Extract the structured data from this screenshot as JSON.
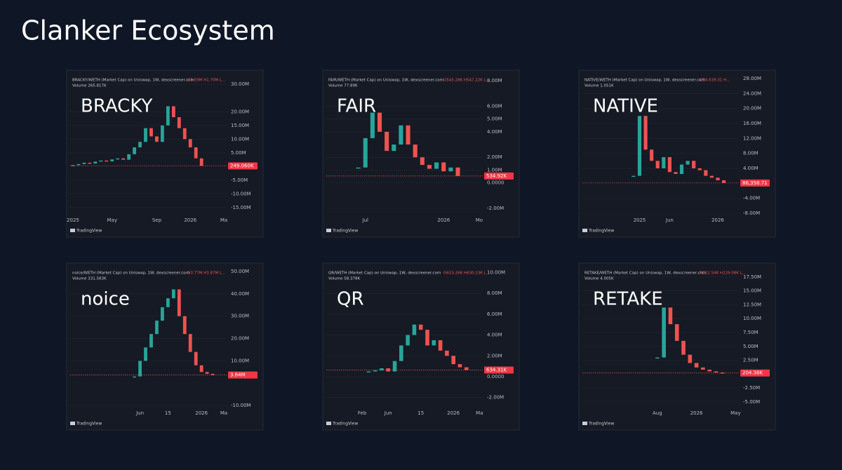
{
  "title": "Clanker Ecosystem",
  "chart_data": [
    {
      "type": "candlestick",
      "title": "BRACKY",
      "legend": "BRACKY/WETH (Market Cap) on Uniswap, 1W, dexscreener.com",
      "ohlc": "O1.59M H1.70M L...",
      "volume_text": "Volume 265.817K",
      "footer": "TradingView",
      "categories": [
        "2025",
        null,
        null,
        null,
        null,
        null,
        null,
        "May",
        null,
        null,
        null,
        null,
        null,
        null,
        null,
        "Sep",
        null,
        null,
        null,
        null,
        null,
        "2026",
        null,
        null,
        null,
        null,
        null,
        "Ma"
      ],
      "values": [
        0.5,
        0.9,
        1.4,
        1.1,
        1.8,
        2.2,
        1.9,
        2.6,
        3.0,
        2.5,
        4.5,
        7,
        9,
        14,
        11,
        9,
        15,
        22,
        18,
        14,
        10,
        7,
        3,
        0.24906,
        null,
        null,
        null,
        null
      ],
      "ylim": [
        -17.3,
        32.1
      ],
      "yticks": [
        {
          "value": 30,
          "label": "30.00M"
        },
        {
          "value": 20,
          "label": "20.00M"
        },
        {
          "value": 15,
          "label": "15.00M"
        },
        {
          "value": 10,
          "label": "10.00M"
        },
        {
          "value": 5,
          "label": "5.00M"
        },
        {
          "value": -5,
          "label": "-5.00M"
        },
        {
          "value": -10,
          "label": "-10.00M"
        },
        {
          "value": -15,
          "label": "-15.00M"
        }
      ],
      "price_label": {
        "value": 0.24906,
        "label": "249.060K"
      },
      "up_color": "#26a69a",
      "down_color": "#ef5350"
    },
    {
      "type": "candlestick",
      "title": "FAIR",
      "legend": "FAIR/WETH (Market Cap) on Uniswap, 1W, dexscreener.com",
      "ohlc": "O545.28K H547.22K L...",
      "volume_text": "Volume 77.89K",
      "footer": "TradingView",
      "categories": [
        null,
        null,
        null,
        null,
        null,
        "Jul",
        null,
        null,
        null,
        null,
        null,
        null,
        null,
        null,
        null,
        null,
        "2026",
        null,
        null,
        null,
        null,
        "Mo"
      ],
      "values": [
        null,
        null,
        null,
        null,
        1.2,
        3.5,
        5.5,
        4,
        2.5,
        3,
        4.5,
        3,
        2,
        1.4,
        1.1,
        1.6,
        0.9,
        1.2,
        0.53492,
        null,
        null,
        null
      ],
      "ylim": [
        -2.44,
        8.17
      ],
      "yticks": [
        {
          "value": 8,
          "label": "8.00M"
        },
        {
          "value": 6,
          "label": "6.00M"
        },
        {
          "value": 5,
          "label": "5.00M"
        },
        {
          "value": 4,
          "label": "4.00M"
        },
        {
          "value": 2,
          "label": "2.00M"
        },
        {
          "value": 1,
          "label": "1.00M"
        },
        {
          "value": 0,
          "label": "0.0000"
        },
        {
          "value": -2,
          "label": "-2.00M"
        }
      ],
      "price_label": {
        "value": 0.53492,
        "label": "534.92K"
      },
      "up_color": "#26a69a",
      "down_color": "#ef5350"
    },
    {
      "type": "candlestick",
      "title": "NATIVE",
      "legend": "NATIVE/WETH (Market Cap) on Uniswap, 1W, dexscreener.com",
      "ohlc": "O84,639.31 H...",
      "volume_text": "Volume 1.051K",
      "footer": "TradingView",
      "categories": [
        null,
        null,
        null,
        null,
        null,
        null,
        null,
        null,
        null,
        "2025",
        null,
        null,
        null,
        null,
        "Jun",
        null,
        null,
        null,
        null,
        null,
        null,
        null,
        "2026",
        null,
        null,
        null
      ],
      "values": [
        null,
        null,
        null,
        null,
        null,
        null,
        null,
        null,
        2,
        18,
        9,
        6,
        4,
        7,
        3,
        2.5,
        5,
        6,
        4,
        3.5,
        2,
        1.5,
        0.8,
        0.08635871,
        null,
        null
      ],
      "ylim": [
        -8.2,
        28
      ],
      "yticks": [
        {
          "value": 28,
          "label": "28.00M"
        },
        {
          "value": 24,
          "label": "24.00M"
        },
        {
          "value": 20,
          "label": "20.00M"
        },
        {
          "value": 16,
          "label": "16.00M"
        },
        {
          "value": 12,
          "label": "12.00M"
        },
        {
          "value": 8,
          "label": "8.00M"
        },
        {
          "value": 4,
          "label": "4.00M"
        },
        {
          "value": -4,
          "label": "-4.00M"
        },
        {
          "value": -8,
          "label": "-8.00M"
        }
      ],
      "price_label": {
        "value": 0.08635871,
        "label": "86,358.71"
      },
      "up_color": "#26a69a",
      "down_color": "#ef5350"
    },
    {
      "type": "candlestick",
      "title": "noice",
      "legend": "noice/WETH (Market Cap) on Uniswap, 1W, dexscreener.com",
      "ohlc": "O3.77M H3.87M L...",
      "volume_text": "Volume 331.583K",
      "footer": "TradingView",
      "categories": [
        null,
        null,
        null,
        null,
        null,
        null,
        null,
        null,
        null,
        null,
        null,
        null,
        "Jun",
        null,
        null,
        null,
        null,
        "15",
        null,
        null,
        null,
        null,
        null,
        "2026",
        null,
        null,
        null,
        "Ma"
      ],
      "values": [
        null,
        null,
        null,
        null,
        null,
        null,
        null,
        null,
        null,
        null,
        null,
        3,
        10,
        16,
        22,
        28,
        34,
        38,
        42,
        30,
        22,
        14,
        8,
        5,
        4.2,
        3.64,
        null,
        null
      ],
      "ylim": [
        -10.6,
        50
      ],
      "yticks": [
        {
          "value": 50,
          "label": "50.00M"
        },
        {
          "value": 40,
          "label": "40.00M"
        },
        {
          "value": 30,
          "label": "30.00M"
        },
        {
          "value": 20,
          "label": "20.00M"
        },
        {
          "value": 10,
          "label": "10.00M"
        },
        {
          "value": -10,
          "label": "-10.00M"
        }
      ],
      "price_label": {
        "value": 3.64,
        "label": "3.64M"
      },
      "up_color": "#26a69a",
      "down_color": "#ef5350"
    },
    {
      "type": "candlestick",
      "title": "QR",
      "legend": "QR/WETH (Market Cap) on Uniswap, 1W, dexscreener.com",
      "ohlc": "O623.26K H630.23K L...",
      "volume_text": "Volume 58.378K",
      "footer": "TradingView",
      "categories": [
        null,
        null,
        null,
        null,
        null,
        "Feb",
        null,
        null,
        null,
        "Jun",
        null,
        null,
        null,
        null,
        "15",
        null,
        null,
        null,
        null,
        "2026",
        null,
        null,
        null,
        "Ma"
      ],
      "values": [
        null,
        null,
        null,
        null,
        null,
        null,
        0.5,
        0.6,
        0.8,
        0.5,
        1.5,
        3,
        4,
        5,
        4.5,
        3,
        3.5,
        2.5,
        2,
        1.2,
        0.9,
        0.63431,
        null,
        null
      ],
      "ylim": [
        -2.9,
        10.1
      ],
      "yticks": [
        {
          "value": 10,
          "label": "10.00M"
        },
        {
          "value": 8,
          "label": "8.00M"
        },
        {
          "value": 6,
          "label": "6.00M"
        },
        {
          "value": 4,
          "label": "4.00M"
        },
        {
          "value": 2,
          "label": "2.00M"
        },
        {
          "value": 0,
          "label": "0.0000"
        },
        {
          "value": -2,
          "label": "-2.00M"
        }
      ],
      "price_label": {
        "value": 0.63431,
        "label": "634.31K"
      },
      "up_color": "#26a69a",
      "down_color": "#ef5350"
    },
    {
      "type": "candlestick",
      "title": "RETAKE",
      "legend": "RETAKE/WETH (Market Cap) on Uniswap, 1W, dexscreener.com",
      "ohlc": "O222.54K H229.08K L...",
      "volume_text": "Volume 4.005K",
      "footer": "TradingView",
      "categories": [
        null,
        null,
        null,
        null,
        null,
        null,
        null,
        null,
        null,
        null,
        null,
        "Aug",
        null,
        null,
        null,
        null,
        null,
        "2026",
        null,
        null,
        null,
        null,
        null,
        "May"
      ],
      "values": [
        null,
        null,
        null,
        null,
        null,
        null,
        null,
        null,
        null,
        null,
        null,
        3,
        12,
        9,
        6,
        3.5,
        2,
        1.2,
        0.8,
        0.5,
        0.3,
        0.20438,
        null,
        null
      ],
      "ylim": [
        -5.9,
        18.5
      ],
      "yticks": [
        {
          "value": 17.5,
          "label": "17.50M"
        },
        {
          "value": 15,
          "label": "15.00M"
        },
        {
          "value": 12.5,
          "label": "12.50M"
        },
        {
          "value": 10,
          "label": "10.00M"
        },
        {
          "value": 7.5,
          "label": "7.50M"
        },
        {
          "value": 5,
          "label": "5.00M"
        },
        {
          "value": 2.5,
          "label": "2.50M"
        },
        {
          "value": -2.5,
          "label": "-2.50M"
        },
        {
          "value": -5,
          "label": "-5.00M"
        }
      ],
      "price_label": {
        "value": 0.20438,
        "label": "204.38K"
      },
      "up_color": "#26a69a",
      "down_color": "#ef5350"
    }
  ]
}
